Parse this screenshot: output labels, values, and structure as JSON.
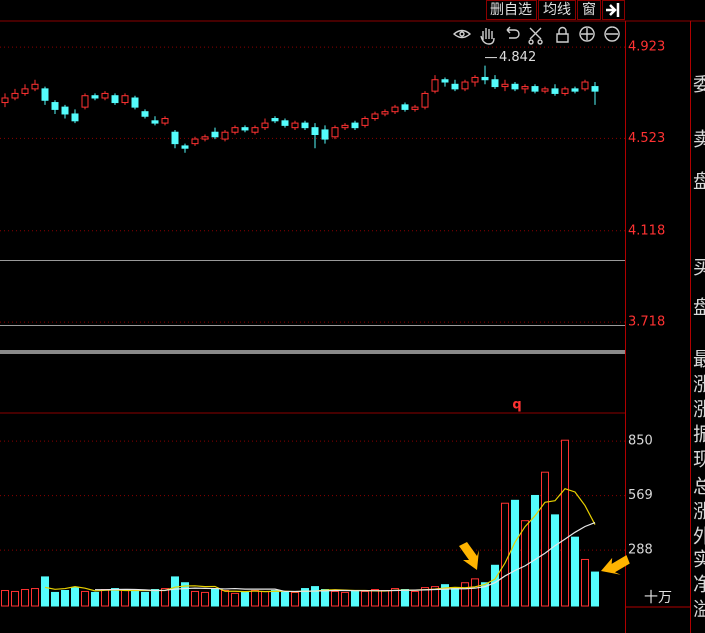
{
  "toolbar": {
    "buttons": [
      "删自选",
      "均线",
      "窗"
    ]
  },
  "sidebar": [
    "委",
    "卖",
    "盘",
    "买",
    "盘",
    "最",
    "涨",
    "涨",
    "振",
    "现",
    "总",
    "涨",
    "外",
    "实",
    "净",
    "溢"
  ],
  "chart_data": [
    {
      "type": "candlestick",
      "up_color": "#ff3232",
      "down_color": "#54fcfc",
      "grid": true,
      "ylim": [
        3.324,
        5.033
      ],
      "yticks": [
        4.923,
        4.523,
        4.118,
        3.718
      ],
      "annotations": [
        "4.842",
        "q"
      ],
      "open": [
        4.68,
        4.7,
        4.72,
        4.74,
        4.74,
        4.68,
        4.66,
        4.63,
        4.66,
        4.71,
        4.7,
        4.71,
        4.68,
        4.7,
        4.64,
        4.6,
        4.59,
        4.55,
        4.49,
        4.5,
        4.52,
        4.55,
        4.52,
        4.55,
        4.57,
        4.55,
        4.57,
        4.61,
        4.6,
        4.57,
        4.59,
        4.57,
        4.56,
        4.53,
        4.57,
        4.59,
        4.58,
        4.61,
        4.63,
        4.64,
        4.67,
        4.65,
        4.66,
        4.73,
        4.78,
        4.76,
        4.74,
        4.77,
        4.79,
        4.78,
        4.75,
        4.76,
        4.74,
        4.75,
        4.73,
        4.74,
        4.72,
        4.74,
        4.74,
        4.75
      ],
      "high": [
        4.72,
        4.74,
        4.76,
        4.78,
        4.75,
        4.69,
        4.67,
        4.65,
        4.72,
        4.72,
        4.73,
        4.72,
        4.72,
        4.71,
        4.65,
        4.62,
        4.62,
        4.56,
        4.5,
        4.53,
        4.54,
        4.57,
        4.56,
        4.58,
        4.58,
        4.58,
        4.61,
        4.62,
        4.61,
        4.6,
        4.6,
        4.59,
        4.58,
        4.58,
        4.59,
        4.6,
        4.62,
        4.64,
        4.65,
        4.67,
        4.68,
        4.67,
        4.73,
        4.8,
        4.79,
        4.78,
        4.78,
        4.8,
        4.842,
        4.8,
        4.78,
        4.77,
        4.76,
        4.76,
        4.75,
        4.76,
        4.75,
        4.75,
        4.78,
        4.77
      ],
      "low": [
        4.66,
        4.69,
        4.71,
        4.73,
        4.67,
        4.63,
        4.61,
        4.59,
        4.65,
        4.69,
        4.69,
        4.67,
        4.67,
        4.65,
        4.61,
        4.58,
        4.58,
        4.48,
        4.46,
        4.49,
        4.51,
        4.52,
        4.51,
        4.54,
        4.55,
        4.54,
        4.56,
        4.59,
        4.57,
        4.56,
        4.56,
        4.48,
        4.5,
        4.52,
        4.56,
        4.56,
        4.57,
        4.6,
        4.62,
        4.63,
        4.64,
        4.64,
        4.65,
        4.72,
        4.75,
        4.73,
        4.73,
        4.75,
        4.76,
        4.74,
        4.73,
        4.73,
        4.72,
        4.72,
        4.72,
        4.71,
        4.71,
        4.72,
        4.73,
        4.67
      ],
      "close": [
        4.7,
        4.72,
        4.74,
        4.76,
        4.69,
        4.65,
        4.63,
        4.6,
        4.71,
        4.7,
        4.72,
        4.68,
        4.71,
        4.66,
        4.62,
        4.59,
        4.61,
        4.5,
        4.48,
        4.52,
        4.53,
        4.53,
        4.55,
        4.57,
        4.56,
        4.57,
        4.59,
        4.6,
        4.58,
        4.59,
        4.57,
        4.54,
        4.52,
        4.57,
        4.58,
        4.57,
        4.61,
        4.63,
        4.64,
        4.66,
        4.65,
        4.66,
        4.72,
        4.78,
        4.77,
        4.74,
        4.77,
        4.79,
        4.78,
        4.75,
        4.76,
        4.74,
        4.75,
        4.73,
        4.74,
        4.72,
        4.74,
        4.73,
        4.77,
        4.73
      ]
    },
    {
      "type": "volume",
      "up_color": "#ff3232",
      "down_color": "#54fcfc",
      "grid": true,
      "y_unit": "十万",
      "ylim": [
        0,
        985
      ],
      "yticks": [
        850,
        569,
        288
      ],
      "values": [
        80,
        75,
        85,
        90,
        150,
        70,
        80,
        95,
        75,
        70,
        85,
        90,
        80,
        75,
        70,
        85,
        90,
        150,
        120,
        75,
        70,
        85,
        80,
        65,
        70,
        80,
        75,
        80,
        75,
        70,
        90,
        100,
        85,
        75,
        70,
        80,
        75,
        85,
        80,
        90,
        85,
        75,
        95,
        100,
        110,
        90,
        120,
        140,
        120,
        210,
        530,
        545,
        440,
        570,
        690,
        470,
        855,
        355,
        240,
        175
      ],
      "lines": [
        {
          "color": "#e8d000",
          "values": [
            null,
            null,
            null,
            null,
            96,
            86,
            90,
            100,
            92,
            78,
            81,
            83,
            80,
            80,
            80,
            80,
            80,
            97,
            103,
            104,
            100,
            101,
            76,
            76,
            74,
            77,
            74,
            76,
            76,
            74,
            76,
            77,
            82,
            84,
            82,
            80,
            80,
            78,
            77,
            81,
            82,
            82,
            84,
            87,
            93,
            96,
            94,
            99,
            111,
            139,
            221,
            329,
            409,
            465,
            535,
            543,
            605,
            588,
            518,
            420
          ]
        },
        {
          "color": "#e8e8e8",
          "values": [
            null,
            null,
            null,
            null,
            null,
            null,
            null,
            null,
            null,
            84,
            84,
            85,
            86,
            85,
            83,
            80,
            81,
            87,
            90,
            92,
            91,
            90,
            88,
            90,
            87,
            87,
            87,
            87,
            75,
            75,
            76,
            77,
            78,
            80,
            80,
            79,
            79,
            79,
            79,
            80,
            81,
            82,
            83,
            85,
            87,
            89,
            89,
            92,
            100,
            120,
            155,
            183,
            207,
            239,
            272,
            311,
            345,
            380,
            410,
            430
          ]
        }
      ]
    }
  ]
}
